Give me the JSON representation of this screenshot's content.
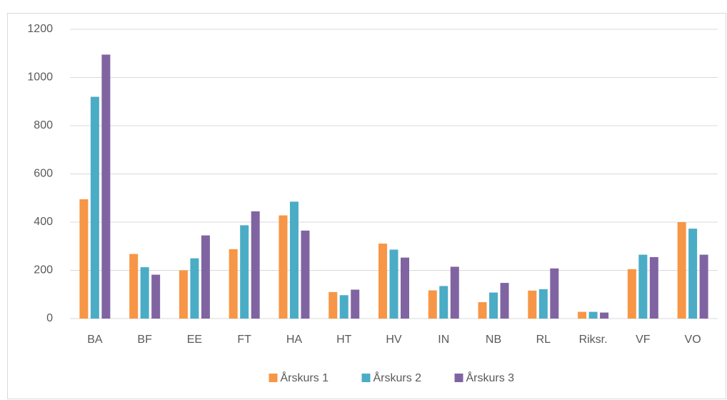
{
  "chart_data": {
    "type": "bar",
    "categories": [
      "BA",
      "BF",
      "EE",
      "FT",
      "HA",
      "HT",
      "HV",
      "IN",
      "NB",
      "RL",
      "Riksr.",
      "VF",
      "VO"
    ],
    "series": [
      {
        "name": "Årskurs 1",
        "color": "#f79646",
        "values": [
          495,
          268,
          200,
          288,
          428,
          110,
          311,
          117,
          68,
          116,
          28,
          205,
          400
        ]
      },
      {
        "name": "Årskurs 2",
        "color": "#4bacc6",
        "values": [
          920,
          213,
          250,
          387,
          485,
          97,
          286,
          135,
          108,
          122,
          28,
          265,
          373
        ]
      },
      {
        "name": "Årskurs 3",
        "color": "#8064a2",
        "values": [
          1095,
          182,
          345,
          445,
          365,
          120,
          253,
          215,
          148,
          208,
          25,
          255,
          265
        ]
      }
    ],
    "ylim": [
      0,
      1200
    ],
    "yticks": [
      0,
      200,
      400,
      600,
      800,
      1000,
      1200
    ],
    "grid": true,
    "legend": "bottom"
  }
}
